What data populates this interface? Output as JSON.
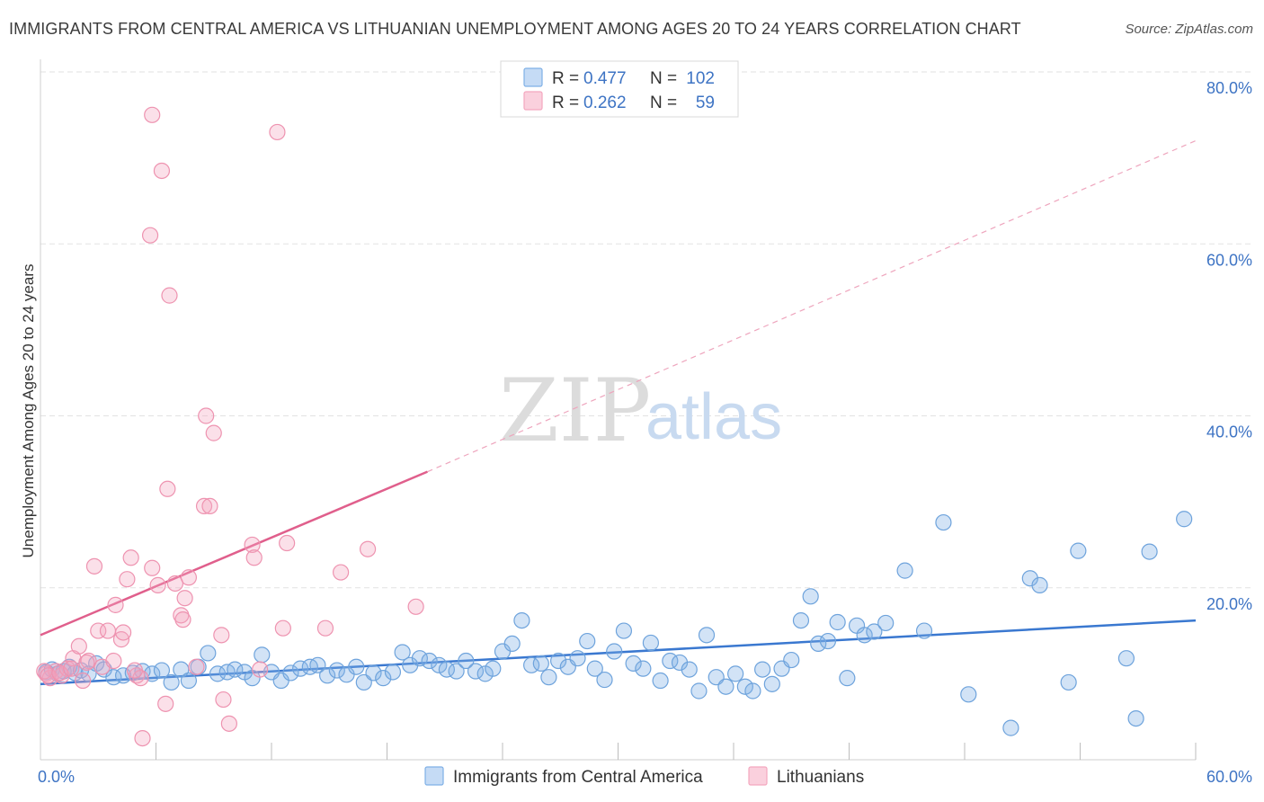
{
  "title": "IMMIGRANTS FROM CENTRAL AMERICA VS LITHUANIAN UNEMPLOYMENT AMONG AGES 20 TO 24 YEARS CORRELATION CHART",
  "source": "Source: ZipAtlas.com",
  "watermark": {
    "zip": "ZIP",
    "atlas": "atlas"
  },
  "legend": {
    "r_label": "R =",
    "n_label": "N =",
    "entries": [
      {
        "r": "0.477",
        "n": "102",
        "color": "#7fb0e6"
      },
      {
        "r": "0.262",
        "n": "59",
        "color": "#f4a7bf"
      }
    ]
  },
  "chart_data": {
    "type": "scatter",
    "ylabel": "Unemployment Among Ages 20 to 24 years",
    "xlim": [
      0,
      60
    ],
    "ylim": [
      0,
      80
    ],
    "x_tick_labels": [
      "0.0%",
      "60.0%"
    ],
    "y_ticks": [
      20,
      40,
      60,
      80
    ],
    "y_tick_labels": [
      "20.0%",
      "40.0%",
      "60.0%",
      "80.0%"
    ],
    "grid": true,
    "series": [
      {
        "name": "Immigrants from Central America",
        "color": "#7fb0e6",
        "line_color": "#3a78d0",
        "trend": {
          "x": [
            0,
            60
          ],
          "y": [
            8.8,
            16.2
          ],
          "dashed": false
        },
        "points": [
          [
            0.3,
            10.2
          ],
          [
            0.6,
            10.5
          ],
          [
            0.9,
            10.0
          ],
          [
            1.2,
            10.3
          ],
          [
            1.5,
            10.8
          ],
          [
            1.8,
            10.1
          ],
          [
            2.1,
            10.4
          ],
          [
            2.5,
            10.0
          ],
          [
            2.9,
            11.2
          ],
          [
            3.3,
            10.5
          ],
          [
            3.8,
            9.6
          ],
          [
            4.3,
            9.8
          ],
          [
            4.8,
            10.1
          ],
          [
            5.3,
            10.3
          ],
          [
            5.8,
            10.0
          ],
          [
            6.3,
            10.4
          ],
          [
            6.8,
            9.0
          ],
          [
            7.3,
            10.5
          ],
          [
            7.7,
            9.2
          ],
          [
            8.2,
            10.8
          ],
          [
            8.7,
            12.4
          ],
          [
            9.2,
            10.0
          ],
          [
            9.7,
            10.2
          ],
          [
            10.1,
            10.5
          ],
          [
            10.6,
            10.2
          ],
          [
            11.0,
            9.5
          ],
          [
            11.5,
            12.2
          ],
          [
            12.0,
            10.2
          ],
          [
            12.5,
            9.2
          ],
          [
            13.0,
            10.1
          ],
          [
            13.5,
            10.6
          ],
          [
            14.0,
            10.8
          ],
          [
            14.4,
            11.0
          ],
          [
            14.9,
            9.8
          ],
          [
            15.4,
            10.4
          ],
          [
            15.9,
            9.9
          ],
          [
            16.4,
            10.8
          ],
          [
            16.8,
            9.0
          ],
          [
            17.3,
            10.1
          ],
          [
            17.8,
            9.5
          ],
          [
            18.3,
            10.2
          ],
          [
            18.8,
            12.5
          ],
          [
            19.2,
            11.0
          ],
          [
            19.7,
            11.8
          ],
          [
            20.2,
            11.5
          ],
          [
            20.7,
            11.0
          ],
          [
            21.1,
            10.5
          ],
          [
            21.6,
            10.3
          ],
          [
            22.1,
            11.5
          ],
          [
            22.6,
            10.3
          ],
          [
            23.1,
            10.0
          ],
          [
            23.5,
            10.6
          ],
          [
            24.0,
            12.6
          ],
          [
            24.5,
            13.5
          ],
          [
            25.0,
            16.2
          ],
          [
            25.5,
            11.0
          ],
          [
            26.0,
            11.2
          ],
          [
            26.4,
            9.6
          ],
          [
            26.9,
            11.5
          ],
          [
            27.4,
            10.8
          ],
          [
            27.9,
            11.8
          ],
          [
            28.4,
            13.8
          ],
          [
            28.8,
            10.6
          ],
          [
            29.3,
            9.3
          ],
          [
            29.8,
            12.6
          ],
          [
            30.3,
            15.0
          ],
          [
            30.8,
            11.2
          ],
          [
            31.3,
            10.6
          ],
          [
            31.7,
            13.6
          ],
          [
            32.2,
            9.2
          ],
          [
            32.7,
            11.5
          ],
          [
            33.2,
            11.3
          ],
          [
            33.7,
            10.5
          ],
          [
            34.2,
            8.0
          ],
          [
            34.6,
            14.5
          ],
          [
            35.1,
            9.6
          ],
          [
            35.6,
            8.5
          ],
          [
            36.1,
            10.0
          ],
          [
            36.6,
            8.5
          ],
          [
            37.0,
            8.0
          ],
          [
            37.5,
            10.5
          ],
          [
            38.0,
            8.8
          ],
          [
            38.5,
            10.6
          ],
          [
            39.0,
            11.6
          ],
          [
            39.5,
            16.2
          ],
          [
            40.0,
            19.0
          ],
          [
            40.4,
            13.5
          ],
          [
            40.9,
            13.8
          ],
          [
            41.4,
            16.0
          ],
          [
            41.9,
            9.5
          ],
          [
            42.4,
            15.6
          ],
          [
            42.8,
            14.5
          ],
          [
            43.3,
            14.9
          ],
          [
            43.9,
            15.9
          ],
          [
            44.9,
            22.0
          ],
          [
            45.9,
            15.0
          ],
          [
            46.9,
            27.6
          ],
          [
            48.2,
            7.6
          ],
          [
            51.4,
            21.1
          ],
          [
            51.9,
            20.3
          ],
          [
            53.9,
            24.3
          ],
          [
            57.6,
            24.2
          ],
          [
            59.4,
            28.0
          ],
          [
            56.9,
            4.8
          ],
          [
            53.4,
            9.0
          ],
          [
            56.4,
            11.8
          ],
          [
            50.4,
            3.7
          ]
        ]
      },
      {
        "name": "Lithuanians",
        "color": "#f4a7bf",
        "line_color": "#e05f8c",
        "trend": {
          "x": [
            0,
            20.1
          ],
          "y": [
            14.5,
            33.5
          ],
          "dashed": false
        },
        "trend_ext": {
          "x": [
            20.1,
            60
          ],
          "y": [
            33.5,
            72.0
          ],
          "dashed": true
        },
        "points": [
          [
            0.3,
            10.0
          ],
          [
            0.5,
            9.5
          ],
          [
            0.8,
            10.3
          ],
          [
            1.1,
            9.8
          ],
          [
            1.4,
            10.6
          ],
          [
            1.7,
            11.8
          ],
          [
            2.0,
            13.2
          ],
          [
            2.2,
            9.2
          ],
          [
            2.5,
            11.5
          ],
          [
            2.8,
            22.5
          ],
          [
            3.0,
            15.0
          ],
          [
            3.2,
            10.8
          ],
          [
            3.5,
            15.0
          ],
          [
            3.8,
            11.5
          ],
          [
            3.9,
            18.0
          ],
          [
            4.2,
            14.0
          ],
          [
            4.3,
            14.8
          ],
          [
            4.5,
            21.0
          ],
          [
            4.7,
            23.5
          ],
          [
            5.0,
            9.8
          ],
          [
            5.2,
            9.5
          ],
          [
            5.3,
            2.5
          ],
          [
            5.7,
            61.0
          ],
          [
            5.8,
            22.3
          ],
          [
            5.8,
            75.0
          ],
          [
            6.1,
            20.3
          ],
          [
            6.3,
            68.5
          ],
          [
            6.5,
            6.5
          ],
          [
            6.6,
            31.5
          ],
          [
            6.7,
            54.0
          ],
          [
            7.0,
            20.5
          ],
          [
            7.3,
            16.8
          ],
          [
            7.4,
            16.3
          ],
          [
            7.5,
            18.8
          ],
          [
            7.7,
            21.2
          ],
          [
            8.1,
            10.8
          ],
          [
            8.5,
            29.5
          ],
          [
            8.6,
            40.0
          ],
          [
            8.8,
            29.5
          ],
          [
            9.0,
            38.0
          ],
          [
            9.4,
            14.5
          ],
          [
            9.5,
            7.0
          ],
          [
            9.8,
            4.2
          ],
          [
            11.0,
            25.0
          ],
          [
            11.1,
            23.5
          ],
          [
            11.4,
            10.5
          ],
          [
            12.3,
            73.0
          ],
          [
            12.6,
            15.3
          ],
          [
            12.8,
            25.2
          ],
          [
            14.8,
            15.3
          ],
          [
            15.6,
            21.8
          ],
          [
            17.0,
            24.5
          ],
          [
            19.5,
            17.8
          ],
          [
            0.2,
            10.3
          ],
          [
            0.4,
            9.8
          ],
          [
            1.0,
            10.1
          ],
          [
            1.6,
            10.6
          ],
          [
            2.4,
            11.3
          ],
          [
            4.9,
            10.4
          ]
        ]
      }
    ]
  }
}
